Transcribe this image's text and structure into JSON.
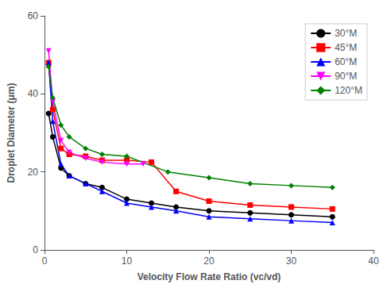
{
  "chart_data": {
    "type": "line",
    "xlabel": "Velocity Flow Rate Ratio (vc/vd)",
    "ylabel": "Droplet Diameter (μm)",
    "xlim": [
      0,
      40
    ],
    "ylim": [
      0,
      60
    ],
    "xticks": [
      0,
      10,
      20,
      30,
      40
    ],
    "yticks": [
      0,
      20,
      40,
      60
    ],
    "grid": false,
    "legend": "upper right",
    "series": [
      {
        "name": "30°M",
        "color": "black",
        "marker": "circle",
        "x": [
          0.5,
          1,
          2,
          3,
          5,
          7,
          10,
          13,
          16,
          20,
          25,
          30,
          35
        ],
        "values": [
          35,
          29,
          21,
          19,
          17,
          16,
          13,
          12,
          11,
          10,
          9.5,
          9,
          8.5
        ]
      },
      {
        "name": "45°M",
        "color": "red",
        "marker": "square",
        "x": [
          0.5,
          1,
          2,
          3,
          5,
          7,
          10,
          13,
          16,
          20,
          25,
          30,
          35
        ],
        "values": [
          48,
          36,
          26,
          24.5,
          24,
          23,
          23,
          22.5,
          15,
          12.5,
          11.5,
          11,
          10.5
        ]
      },
      {
        "name": "60°M",
        "color": "blue",
        "marker": "triangle-up",
        "x": [
          0.5,
          1,
          2,
          3,
          5,
          7,
          10,
          13,
          16,
          20,
          25,
          30,
          35
        ],
        "values": [
          48,
          33,
          22,
          19,
          17,
          15,
          12,
          11,
          10,
          8.5,
          8,
          7.5,
          7
        ]
      },
      {
        "name": "90°M",
        "color": "magenta",
        "marker": "triangle-down",
        "x": [
          0.5,
          1,
          2,
          3,
          5,
          7,
          10,
          12
        ],
        "values": [
          51,
          38,
          28,
          25,
          23.5,
          22.5,
          22,
          22
        ]
      },
      {
        "name": "120°M",
        "color": "green",
        "marker": "diamond",
        "x": [
          0.5,
          1,
          2,
          3,
          5,
          7,
          10,
          15,
          20,
          25,
          30,
          35
        ],
        "values": [
          47,
          39,
          32,
          29,
          26,
          24.5,
          24,
          20,
          18.5,
          17,
          16.5,
          16
        ]
      }
    ]
  }
}
